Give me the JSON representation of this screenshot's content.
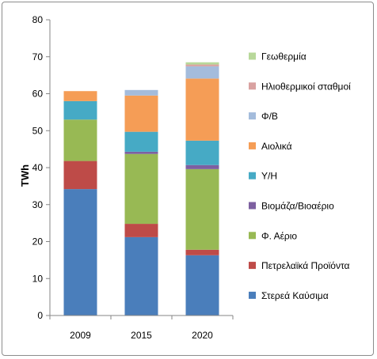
{
  "chart_data": {
    "type": "bar",
    "stacked": true,
    "ylabel": "TWh",
    "xlabel": "",
    "title": "",
    "ylim": [
      0,
      80
    ],
    "ytick_step": 10,
    "grid": false,
    "legend_position": "right",
    "categories": [
      "2009",
      "2015",
      "2020"
    ],
    "series": [
      {
        "name": "Στερεά Καύσιμα",
        "color": "#4a7ebb",
        "values": [
          34.2,
          21.2,
          16.3
        ]
      },
      {
        "name": "Πετρελαϊκά Προϊόντα",
        "color": "#be4b48",
        "values": [
          7.6,
          3.6,
          1.5
        ]
      },
      {
        "name": "Φ. Αέριο",
        "color": "#98b954",
        "values": [
          11.2,
          18.9,
          21.8
        ]
      },
      {
        "name": "Βιομάζα/Βιοαέριο",
        "color": "#7d60a0",
        "values": [
          0.0,
          0.6,
          1.1
        ]
      },
      {
        "name": "Υ/Η",
        "color": "#46aac5",
        "values": [
          5.0,
          5.4,
          6.6
        ]
      },
      {
        "name": "Αιολικά",
        "color": "#f59d56",
        "values": [
          2.7,
          9.8,
          16.8
        ]
      },
      {
        "name": "Φ/Β",
        "color": "#a4bcdc",
        "values": [
          0.0,
          1.5,
          3.3
        ]
      },
      {
        "name": "Ηλιοθερμικοί σταθμοί",
        "color": "#d9a2a1",
        "values": [
          0.0,
          0.0,
          0.5
        ]
      },
      {
        "name": "Γεωθερμία",
        "color": "#b8d89a",
        "values": [
          0.0,
          0.0,
          0.6
        ]
      }
    ]
  }
}
